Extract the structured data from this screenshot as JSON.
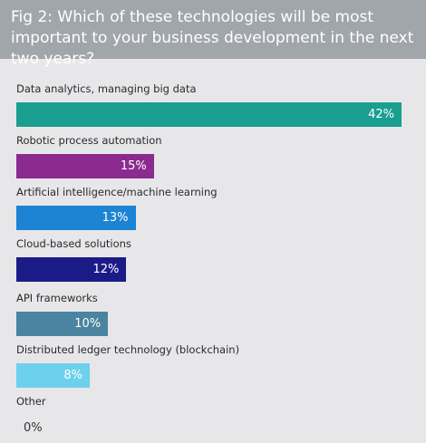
{
  "chart_data": {
    "type": "hbar",
    "title": "Fig 2: Which of these technologies will be most important to your business development in the next two years?",
    "categories": [
      "Data analytics, managing big data",
      "Robotic process automation",
      "Artificial intelligence/machine learning",
      "Cloud-based solutions",
      "API frameworks",
      "Distributed ledger technology (blockchain)",
      "Other"
    ],
    "values": [
      42,
      15,
      13,
      12,
      10,
      8,
      0
    ],
    "value_labels": [
      "42%",
      "15%",
      "13%",
      "12%",
      "10%",
      "8%",
      "0%"
    ],
    "colors": [
      "#1a9e8f",
      "#8b2a8f",
      "#1c84d2",
      "#1b1b88",
      "#4a84a0",
      "#6dd0ec",
      "#cccccc"
    ]
  }
}
